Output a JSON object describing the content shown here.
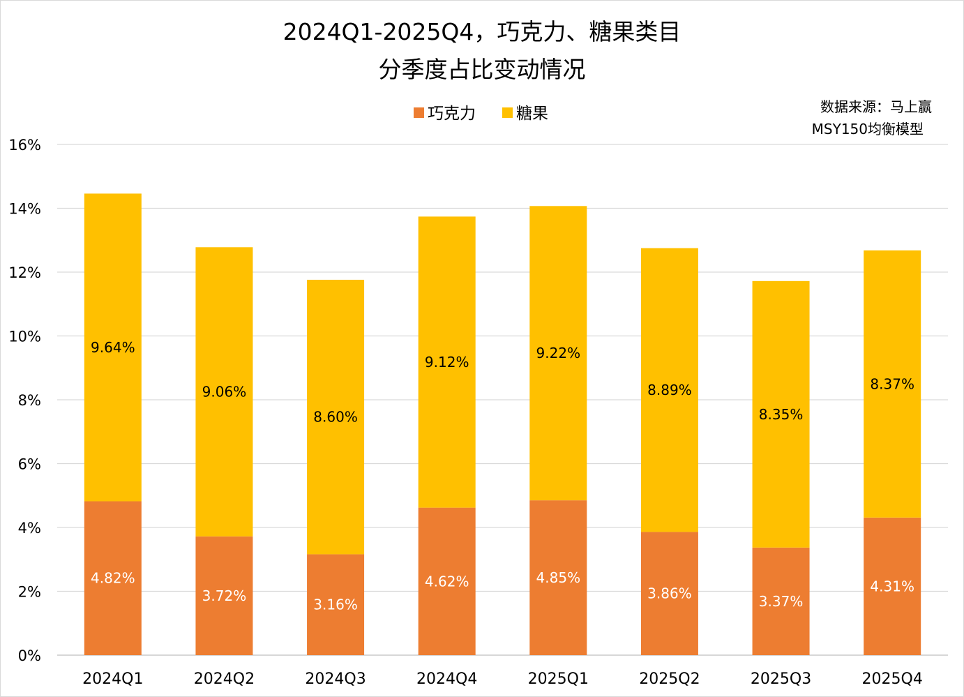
{
  "chart_data": {
    "type": "bar",
    "stacked": true,
    "title": [
      "2024Q1-2025Q4，巧克力、糖果类目",
      "分季度占比变动情况"
    ],
    "source": [
      "数据来源：马上赢",
      "MSY150均衡模型"
    ],
    "categories": [
      "2024Q1",
      "2024Q2",
      "2024Q3",
      "2024Q4",
      "2025Q1",
      "2025Q2",
      "2025Q3",
      "2025Q4"
    ],
    "series": [
      {
        "name": "巧克力",
        "color": "#ED7D31",
        "values": [
          4.82,
          3.72,
          3.16,
          4.62,
          4.85,
          3.86,
          3.37,
          4.31
        ],
        "labels": [
          "4.82%",
          "3.72%",
          "3.16%",
          "4.62%",
          "4.85%",
          "3.86%",
          "3.37%",
          "4.31%"
        ]
      },
      {
        "name": "糖果",
        "color": "#FFC000",
        "values": [
          9.64,
          9.06,
          8.6,
          9.12,
          9.22,
          8.89,
          8.35,
          8.37
        ],
        "labels": [
          "9.64%",
          "9.06%",
          "8.60%",
          "9.12%",
          "9.22%",
          "8.89%",
          "8.35%",
          "8.37%"
        ]
      }
    ],
    "ylim": [
      0,
      16
    ],
    "yticks": [
      "0%",
      "2%",
      "4%",
      "6%",
      "8%",
      "10%",
      "12%",
      "14%",
      "16%"
    ],
    "grid": true,
    "legend_position": "top"
  }
}
